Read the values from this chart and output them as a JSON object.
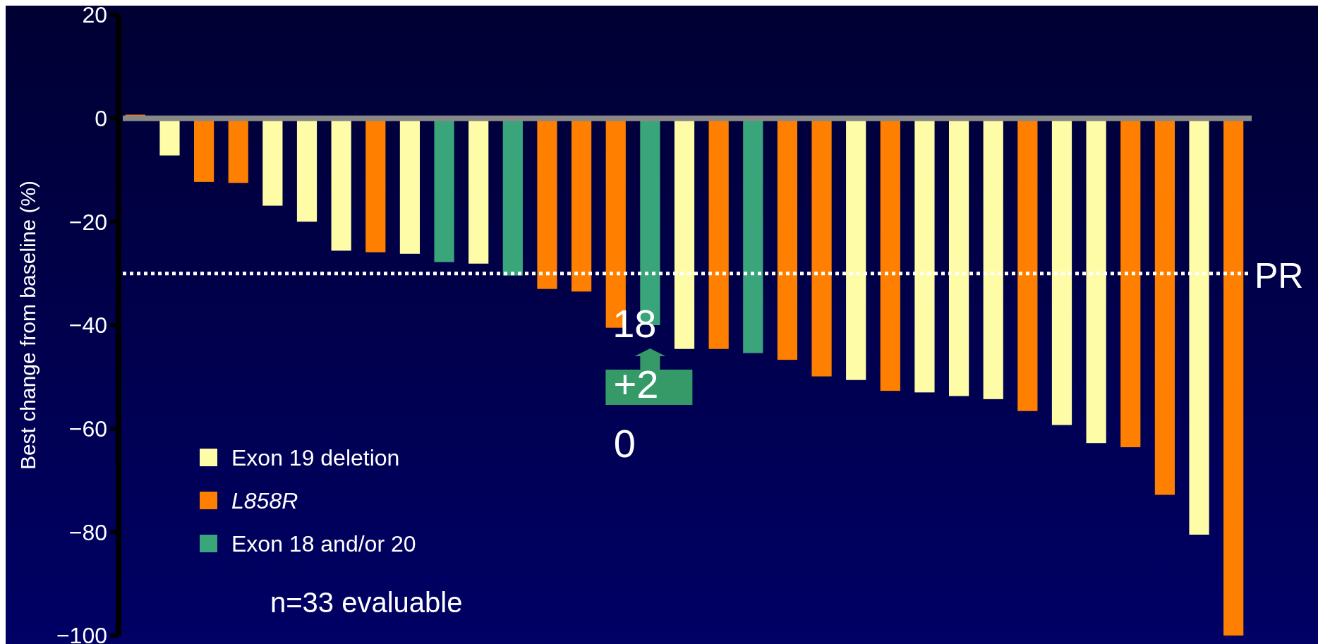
{
  "chart_data": {
    "type": "bar",
    "stacked": true,
    "ylabel": "Best change from baseline (%)",
    "categories": [
      null,
      null,
      null,
      null,
      null,
      null,
      null,
      null,
      null,
      null,
      null,
      null,
      null,
      null,
      null,
      null,
      null,
      null,
      null,
      null,
      null,
      null,
      null,
      null,
      null,
      null,
      null,
      null,
      null,
      null,
      null,
      null,
      null
    ],
    "series": [
      {
        "name": "Exon 19 deletion",
        "color": "#fffca8",
        "values": [
          null,
          -7.2,
          null,
          null,
          -16.9,
          -20,
          -25.6,
          null,
          -26.2,
          null,
          -28.1,
          null,
          null,
          null,
          null,
          null,
          -44.6,
          null,
          null,
          null,
          null,
          -50.6,
          null,
          -53,
          -53.7,
          -54.3,
          null,
          -59.3,
          -62.8,
          null,
          null,
          -80.5,
          null
        ]
      },
      {
        "name": "L858R",
        "color": "#ff7f00",
        "values": [
          0.7,
          null,
          -12.3,
          -12.5,
          null,
          null,
          null,
          -25.9,
          null,
          null,
          null,
          null,
          -33,
          -33.5,
          -40.5,
          null,
          null,
          -44.6,
          null,
          -46.7,
          -49.9,
          null,
          -52.7,
          null,
          null,
          null,
          -56.6,
          null,
          null,
          -63.6,
          -72.8,
          null,
          -100
        ]
      },
      {
        "name": "Exon 18 and/or 20",
        "color": "#3aa57a",
        "values": [
          null,
          null,
          null,
          null,
          null,
          null,
          null,
          null,
          null,
          -27.8,
          null,
          -30.4,
          null,
          null,
          null,
          -40,
          null,
          null,
          -45.4,
          null,
          null,
          null,
          null,
          null,
          null,
          null,
          null,
          null,
          null,
          null,
          null,
          null,
          null
        ]
      }
    ],
    "ylim": [
      -100,
      20
    ],
    "yticks": [
      20,
      0,
      {
        "value": -20,
        "label": "−20"
      },
      {
        "value": -40,
        "label": "−40"
      },
      {
        "value": -60,
        "label": "−60"
      },
      {
        "value": -80,
        "label": "−80"
      },
      {
        "value": -100,
        "label": "−100"
      }
    ],
    "ref_lines": [
      {
        "axis": "y",
        "value": 0,
        "color": "#888888",
        "line_style": "solid"
      },
      {
        "axis": "y",
        "value": -30,
        "label": "PR",
        "color": "#ffffff",
        "line_style": "dotted"
      }
    ],
    "legend": "bottom left",
    "annotations": [
      "18",
      "+2",
      "0",
      "n=33 evaluable"
    ]
  }
}
